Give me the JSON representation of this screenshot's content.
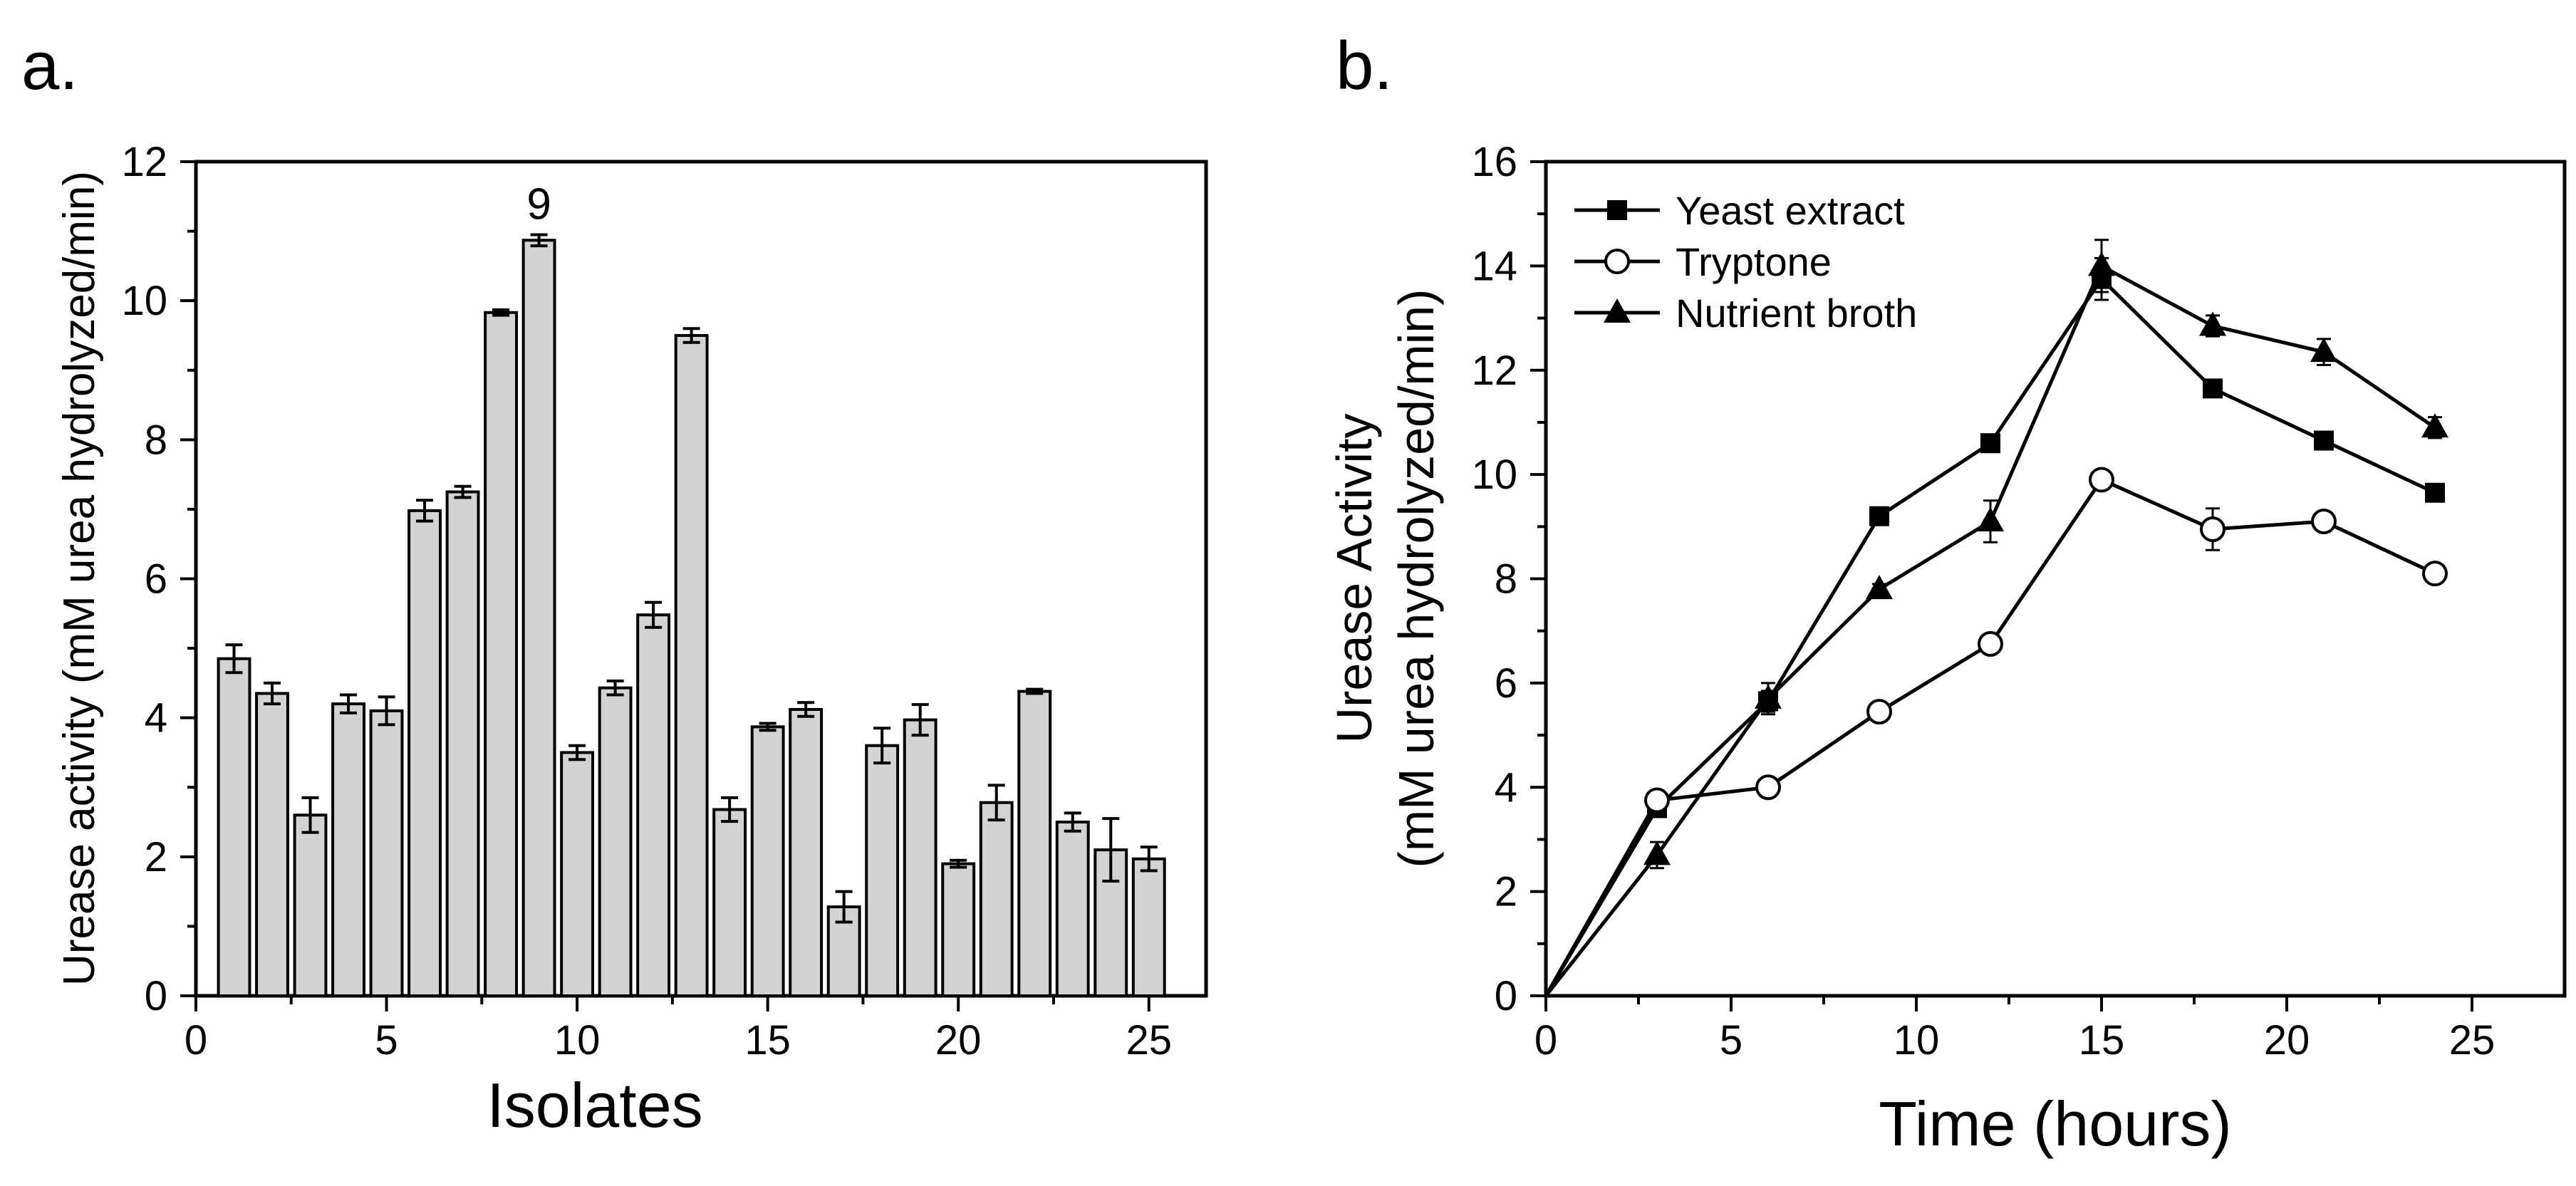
{
  "chart_data": [
    {
      "panel_label": "a.",
      "type": "bar",
      "title": "",
      "xlabel": "Isolates",
      "ylabel": "Urease activity (mM urea hydrolyzed/min)",
      "xlim": [
        0,
        26.5
      ],
      "ylim": [
        0,
        12
      ],
      "xticks": [
        "0",
        "5",
        "10",
        "15",
        "20",
        "25"
      ],
      "yticks": [
        "0",
        "2",
        "4",
        "6",
        "8",
        "10",
        "12"
      ],
      "grid": false,
      "bar_color": "#d3d3d3",
      "categories": [
        1,
        2,
        3,
        4,
        5,
        6,
        7,
        8,
        9,
        10,
        11,
        12,
        13,
        14,
        15,
        16,
        17,
        18,
        19,
        20,
        21,
        22,
        23,
        24,
        25
      ],
      "values": [
        4.85,
        4.35,
        2.6,
        4.2,
        4.1,
        6.98,
        7.25,
        9.83,
        10.87,
        3.5,
        4.43,
        5.48,
        9.5,
        2.68,
        3.87,
        4.12,
        1.28,
        3.6,
        3.97,
        1.9,
        2.78,
        4.38,
        2.5,
        2.1,
        1.97
      ],
      "errors": [
        0.2,
        0.15,
        0.25,
        0.13,
        0.2,
        0.15,
        0.08,
        0.04,
        0.08,
        0.1,
        0.1,
        0.18,
        0.1,
        0.17,
        0.05,
        0.1,
        0.22,
        0.25,
        0.22,
        0.05,
        0.25,
        0.03,
        0.13,
        0.45,
        0.17
      ],
      "annotations": [
        {
          "x": 9,
          "text": "9"
        }
      ]
    },
    {
      "panel_label": "b.",
      "type": "line",
      "title": "",
      "xlabel": "Time (hours)",
      "ylabel_line1": "Urease Activity",
      "ylabel_line2": "(mM urea hydrolyzed/min)",
      "xlim": [
        0,
        27.5
      ],
      "ylim": [
        0,
        16
      ],
      "xticks": [
        "0",
        "5",
        "10",
        "15",
        "20",
        "25"
      ],
      "yticks": [
        "0",
        "2",
        "4",
        "6",
        "8",
        "10",
        "12",
        "14",
        "16"
      ],
      "grid": false,
      "legend_position": "top-left",
      "x": [
        0,
        3,
        6,
        9,
        12,
        15,
        18,
        21,
        24
      ],
      "series": [
        {
          "name": "Yeast extract",
          "marker": "square-filled",
          "values": [
            0,
            3.6,
            5.65,
            9.2,
            10.6,
            13.75,
            11.65,
            10.65,
            9.65
          ],
          "errors": [
            0,
            0.15,
            0.2,
            0.1,
            0.1,
            0.4,
            0.1,
            0.1,
            0.1
          ]
        },
        {
          "name": "Tryptone",
          "marker": "circle-open",
          "values": [
            0,
            3.75,
            4.0,
            5.45,
            6.75,
            9.9,
            8.95,
            9.1,
            8.1
          ],
          "errors": [
            0,
            0.1,
            0.1,
            0.1,
            0.1,
            0.15,
            0.4,
            0.15,
            0.1
          ]
        },
        {
          "name": "Nutrient broth",
          "marker": "triangle-filled",
          "values": [
            0,
            2.7,
            5.7,
            7.8,
            9.1,
            14.0,
            12.85,
            12.35,
            10.9
          ],
          "errors": [
            0,
            0.25,
            0.3,
            0.1,
            0.4,
            0.5,
            0.2,
            0.25,
            0.2
          ]
        }
      ]
    }
  ]
}
